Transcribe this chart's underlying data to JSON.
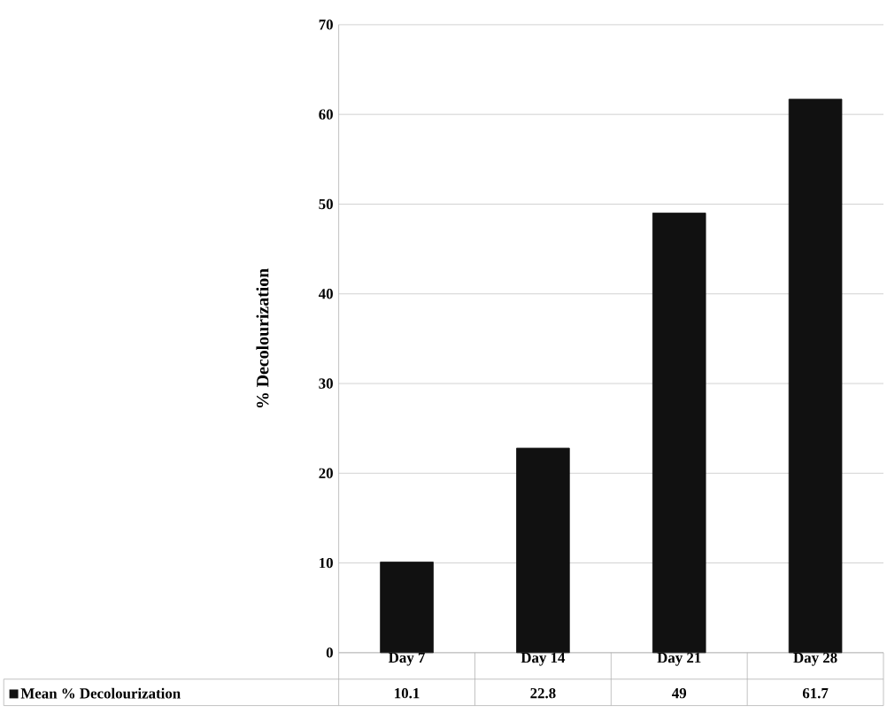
{
  "chart_data": {
    "type": "bar",
    "ylabel": "% Decolourization",
    "categories": [
      "Day 7",
      "Day 14",
      "Day 21",
      "Day 28"
    ],
    "series": [
      {
        "name": "Mean % Decolourization",
        "color": "#111111",
        "values": [
          10.1,
          22.8,
          49,
          61.7
        ]
      }
    ],
    "ylim": [
      0,
      70
    ],
    "yticks": [
      0,
      10,
      20,
      30,
      40,
      50,
      60,
      70
    ],
    "grid": "y",
    "data_labels": true,
    "legend": "bottom left"
  }
}
